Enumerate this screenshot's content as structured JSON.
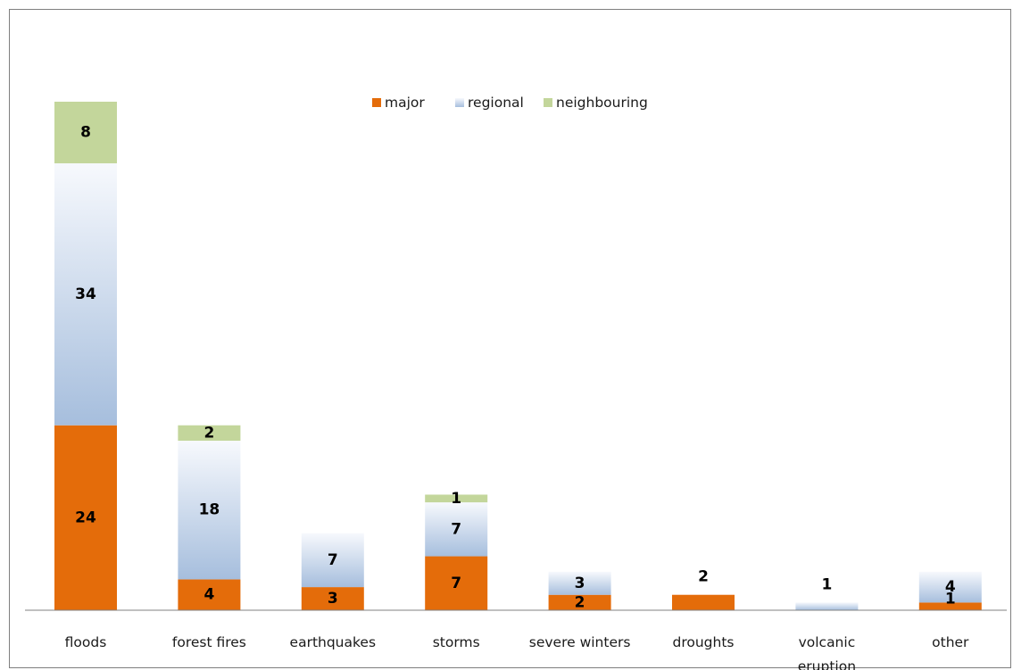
{
  "chart_data": {
    "type": "bar",
    "stacked": true,
    "categories": [
      "floods",
      "forest fires",
      "earthquakes",
      "storms",
      "severe winters",
      "droughts",
      "volcanic eruption",
      "other"
    ],
    "series": [
      {
        "name": "major",
        "values": [
          24,
          4,
          3,
          7,
          2,
          2,
          0,
          1
        ]
      },
      {
        "name": "regional",
        "values": [
          34,
          18,
          7,
          7,
          3,
          0,
          1,
          4
        ]
      },
      {
        "name": "neighbouring",
        "values": [
          8,
          2,
          0,
          1,
          0,
          0,
          0,
          0
        ]
      }
    ],
    "ylim": [
      0,
      66
    ],
    "grid": false,
    "legend": "top-center",
    "colors": {
      "major": "#e46c0a",
      "regional_light": "#f5f8fc",
      "regional_dark": "#a8c0de",
      "neighbouring": "#c3d69b",
      "axis": "#808080"
    }
  }
}
